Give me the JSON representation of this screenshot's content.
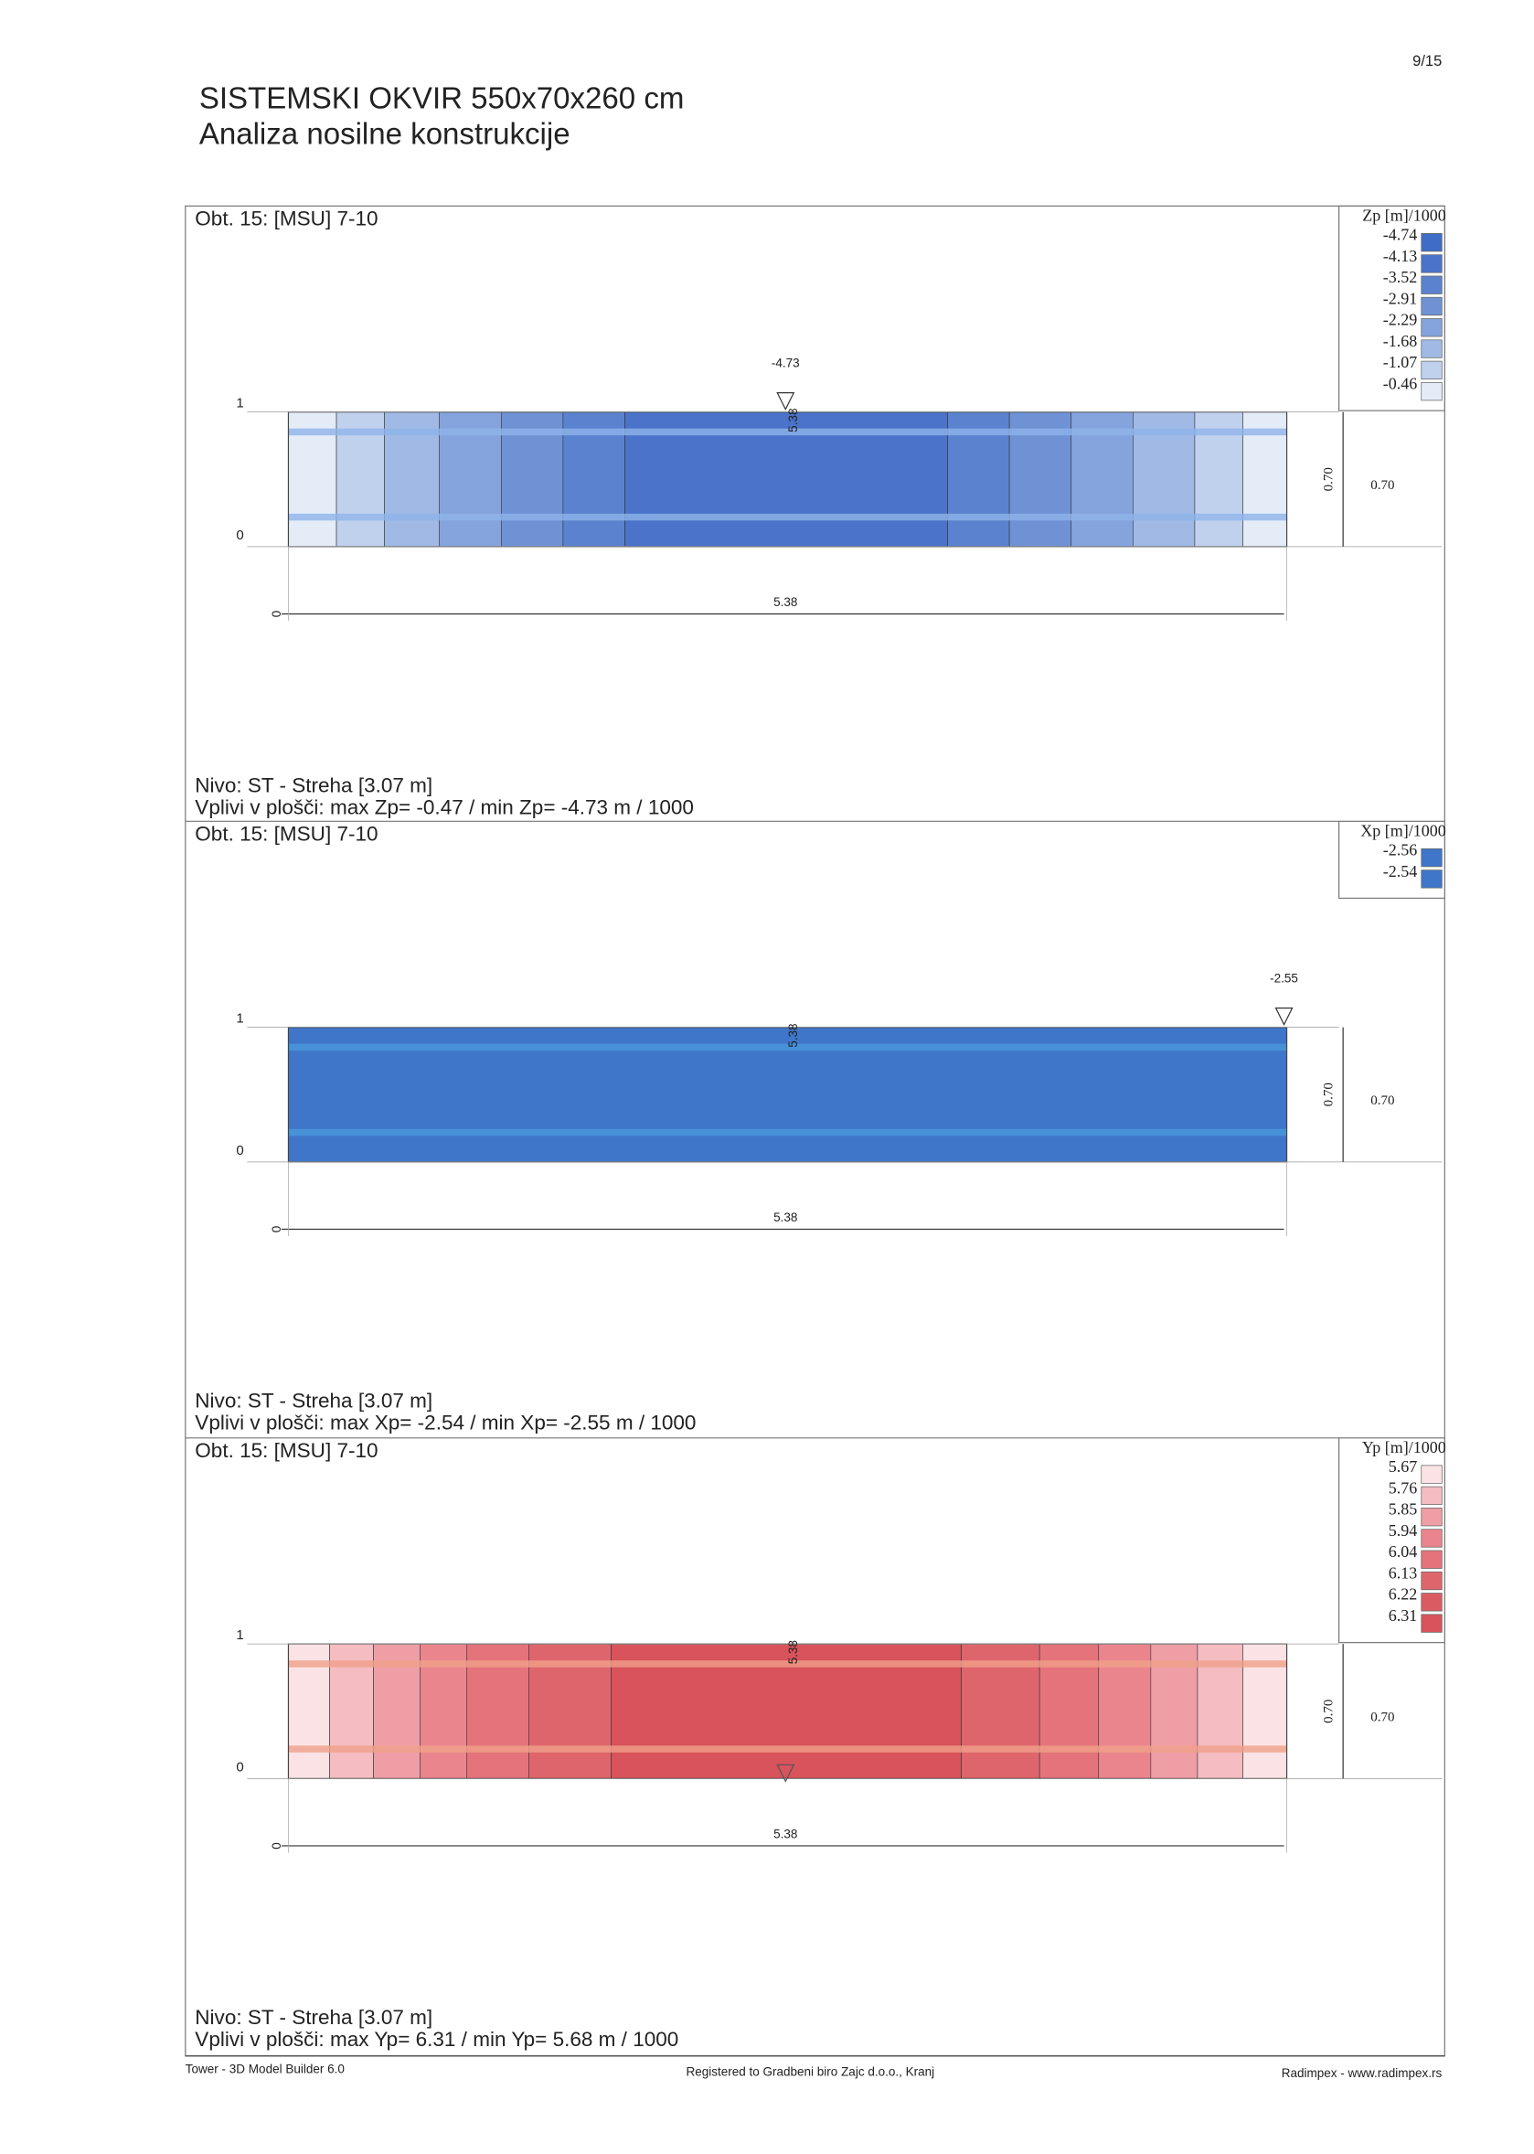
{
  "page_number": "9/15",
  "title": "SISTEMSKI OKVIR 550x70x260 cm",
  "subtitle": "Analiza nosilne konstrukcije",
  "panels": [
    {
      "load_case": "Obt. 15: [MSU] 7-10",
      "legend_title": "Zp [m]/1000",
      "legend": [
        {
          "label": "-4.74",
          "color": "#3f6cc7"
        },
        {
          "label": "-4.13",
          "color": "#4a73c9"
        },
        {
          "label": "-3.52",
          "color": "#5b82cf"
        },
        {
          "label": "-2.91",
          "color": "#6f92d5"
        },
        {
          "label": "-2.29",
          "color": "#85a3dc"
        },
        {
          "label": "-1.68",
          "color": "#a0b9e5"
        },
        {
          "label": "-1.07",
          "color": "#c0d1ee"
        },
        {
          "label": "-0.46",
          "color": "#e4ecf8"
        }
      ],
      "marker_label": "-4.73",
      "row_labels": [
        "1",
        "0"
      ],
      "slab_label": "5.38",
      "height_label": "0.70",
      "height_value": "0.70",
      "length_label": "5.38",
      "start_label": "0",
      "level": "Nivo: ST - Streha [3.07 m]",
      "summary": "Vplivi v plošči: max Zp= -0.47 / min Zp= -4.73 m / 1000"
    },
    {
      "load_case": "Obt. 15: [MSU] 7-10",
      "legend_title": "Xp [m]/1000",
      "legend": [
        {
          "label": "-2.56",
          "color": "#3f76c9"
        },
        {
          "label": "-2.54",
          "color": "#3f76c9"
        }
      ],
      "marker_label": "-2.55",
      "row_labels": [
        "1",
        "0"
      ],
      "slab_label": "5.38",
      "height_label": "0.70",
      "height_value": "0.70",
      "length_label": "5.38",
      "start_label": "0",
      "level": "Nivo: ST - Streha [3.07 m]",
      "summary": "Vplivi v plošči: max Xp= -2.54 / min Xp= -2.55 m / 1000"
    },
    {
      "load_case": "Obt. 15: [MSU] 7-10",
      "legend_title": "Yp [m]/1000",
      "legend": [
        {
          "label": "5.67",
          "color": "#fbe3e5"
        },
        {
          "label": "5.76",
          "color": "#f5bcc1"
        },
        {
          "label": "5.85",
          "color": "#ef9ea5"
        },
        {
          "label": "5.94",
          "color": "#ea858d"
        },
        {
          "label": "6.04",
          "color": "#e4737b"
        },
        {
          "label": "6.13",
          "color": "#df656d"
        },
        {
          "label": "6.22",
          "color": "#db5b63"
        },
        {
          "label": "6.31",
          "color": "#d8535b"
        }
      ],
      "marker_label": null,
      "row_labels": [
        "1",
        "0"
      ],
      "slab_label": "5.38",
      "height_label": "0.70",
      "height_value": "0.70",
      "length_label": "5.38",
      "start_label": "0",
      "level": "Nivo: ST - Streha [3.07 m]",
      "summary": "Vplivi v plošči: max Yp= 6.31 / min Yp= 5.68 m / 1000"
    }
  ],
  "footer": {
    "left": "Tower - 3D Model Builder 6.0",
    "center": "Registered to Gradbeni biro Zajc d.o.o., Kranj",
    "right": "Radimpex - www.radimpex.rs"
  }
}
